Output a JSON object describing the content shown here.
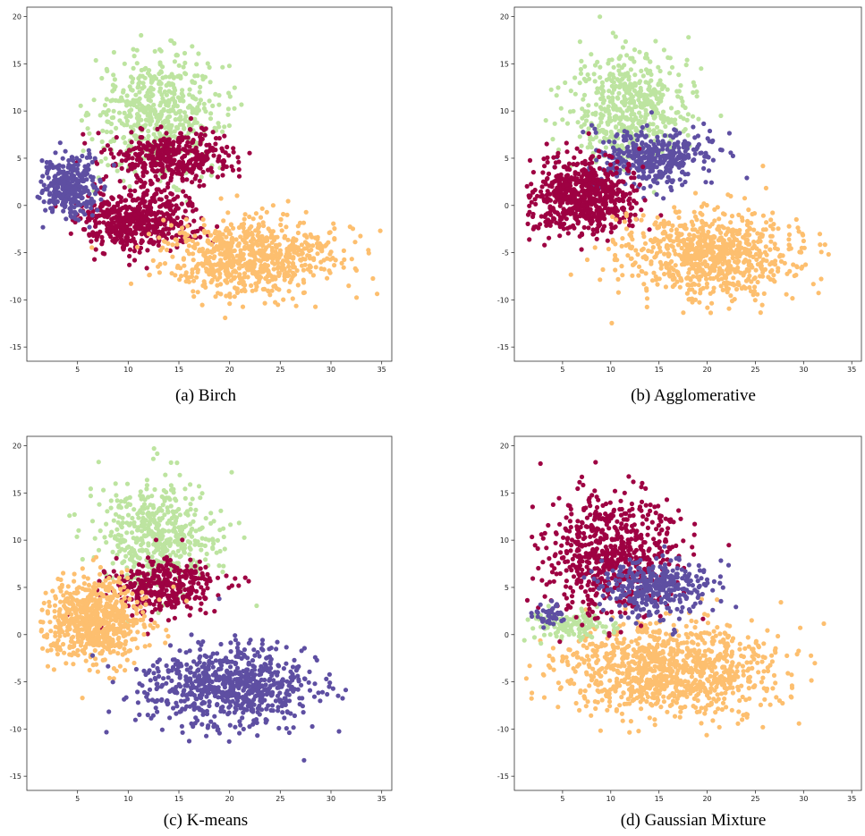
{
  "figure": {
    "captions": [
      "(a) Birch",
      "(b) Agglomerative",
      "(c) K-means",
      "(d) Gaussian Mixture"
    ]
  },
  "chart_data": [
    {
      "type": "scatter",
      "title": "",
      "xlabel": "",
      "ylabel": "",
      "xlim": [
        0,
        36
      ],
      "ylim": [
        -16.5,
        21
      ],
      "xticks": [
        5,
        10,
        15,
        20,
        25,
        30,
        35
      ],
      "yticks": [
        -15,
        -10,
        -5,
        0,
        5,
        10,
        15,
        20
      ],
      "grid": false,
      "legend": "none",
      "series": [
        {
          "color": "#bde4a0",
          "clusters": [
            {
              "cx": 13,
              "cy": 9.8,
              "sx": 3.2,
              "sy": 3.0,
              "n": 520
            }
          ]
        },
        {
          "color": "#9e0142",
          "clusters": [
            {
              "cx": 14.5,
              "cy": 5.2,
              "sx": 3.0,
              "sy": 1.5,
              "n": 380
            },
            {
              "cx": 11,
              "cy": -1.5,
              "sx": 3.0,
              "sy": 1.6,
              "n": 520
            }
          ]
        },
        {
          "color": "#5e4fa2",
          "clusters": [
            {
              "cx": 4.2,
              "cy": 2.0,
              "sx": 1.4,
              "sy": 1.6,
              "n": 320
            }
          ]
        },
        {
          "color": "#fdbf6f",
          "clusters": [
            {
              "cx": 22,
              "cy": -5.5,
              "sx": 4.2,
              "sy": 2.0,
              "n": 700
            }
          ]
        }
      ]
    },
    {
      "type": "scatter",
      "title": "",
      "xlabel": "",
      "ylabel": "",
      "xlim": [
        0,
        36
      ],
      "ylim": [
        -16.5,
        21
      ],
      "xticks": [
        5,
        10,
        15,
        20,
        25,
        30,
        35
      ],
      "yticks": [
        -15,
        -10,
        -5,
        0,
        5,
        10,
        15,
        20
      ],
      "grid": false,
      "legend": "none",
      "series": [
        {
          "color": "#bde4a0",
          "clusters": [
            {
              "cx": 12,
              "cy": 10.5,
              "sx": 3.0,
              "sy": 3.0,
              "n": 520
            }
          ]
        },
        {
          "color": "#5e4fa2",
          "clusters": [
            {
              "cx": 14.5,
              "cy": 5.0,
              "sx": 3.0,
              "sy": 1.5,
              "n": 380
            }
          ]
        },
        {
          "color": "#9e0142",
          "clusters": [
            {
              "cx": 7,
              "cy": 0.8,
              "sx": 2.8,
              "sy": 2.0,
              "n": 650
            }
          ]
        },
        {
          "color": "#fdbf6f",
          "clusters": [
            {
              "cx": 20,
              "cy": -5.0,
              "sx": 4.5,
              "sy": 2.2,
              "n": 780
            }
          ]
        }
      ]
    },
    {
      "type": "scatter",
      "title": "",
      "xlabel": "",
      "ylabel": "",
      "xlim": [
        0,
        36
      ],
      "ylim": [
        -16.5,
        21
      ],
      "xticks": [
        5,
        10,
        15,
        20,
        25,
        30,
        35
      ],
      "yticks": [
        -15,
        -10,
        -5,
        0,
        5,
        10,
        15,
        20
      ],
      "grid": false,
      "legend": "none",
      "series": [
        {
          "color": "#bde4a0",
          "clusters": [
            {
              "cx": 13,
              "cy": 10.2,
              "sx": 3.0,
              "sy": 3.0,
              "n": 500
            }
          ]
        },
        {
          "color": "#9e0142",
          "clusters": [
            {
              "cx": 13.5,
              "cy": 5.0,
              "sx": 2.8,
              "sy": 1.5,
              "n": 350
            }
          ]
        },
        {
          "color": "#fdbf6f",
          "clusters": [
            {
              "cx": 6.5,
              "cy": 1.5,
              "sx": 2.6,
              "sy": 2.2,
              "n": 700
            }
          ]
        },
        {
          "color": "#5e4fa2",
          "clusters": [
            {
              "cx": 20,
              "cy": -5.5,
              "sx": 4.2,
              "sy": 2.1,
              "n": 720
            }
          ]
        }
      ]
    },
    {
      "type": "scatter",
      "title": "",
      "xlabel": "",
      "ylabel": "",
      "xlim": [
        0,
        36
      ],
      "ylim": [
        -16.5,
        21
      ],
      "xticks": [
        5,
        10,
        15,
        20,
        25,
        30,
        35
      ],
      "yticks": [
        -15,
        -10,
        -5,
        0,
        5,
        10,
        15,
        20
      ],
      "grid": false,
      "legend": "none",
      "series": [
        {
          "color": "#fdbf6f",
          "clusters": [
            {
              "cx": 16,
              "cy": -3.5,
              "sx": 5.5,
              "sy": 2.5,
              "n": 1000
            }
          ]
        },
        {
          "color": "#bde4a0",
          "clusters": [
            {
              "cx": 6,
              "cy": 1.0,
              "sx": 2.0,
              "sy": 0.8,
              "n": 120
            }
          ]
        },
        {
          "color": "#9e0142",
          "clusters": [
            {
              "cx": 10,
              "cy": 8.5,
              "sx": 3.5,
              "sy": 3.2,
              "n": 650
            }
          ]
        },
        {
          "color": "#5e4fa2",
          "clusters": [
            {
              "cx": 14.5,
              "cy": 5.0,
              "sx": 3.0,
              "sy": 1.5,
              "n": 330
            },
            {
              "cx": 3.5,
              "cy": 2.0,
              "sx": 0.8,
              "sy": 0.6,
              "n": 40
            }
          ]
        }
      ]
    }
  ]
}
